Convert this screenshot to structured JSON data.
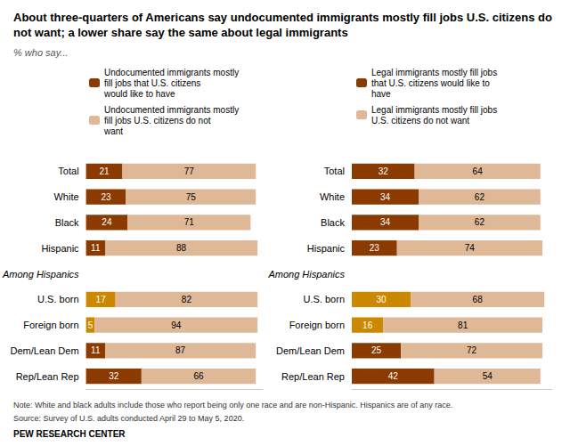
{
  "chart_data": [
    {
      "type": "bar",
      "title": "About three-quarters of Americans say undocumented immigrants mostly fill jobs U.S. citizens do not want; a lower share say the same about legal immigrants",
      "subtitle": "% who say...",
      "annotations": [
        "Note: White and black adults include those who report being only one race and are non-Hispanic. Hispanics are of any race.",
        "Source: Survey of U.S. adults conducted April 29 to May 5, 2020.",
        "PEW RESEARCH CENTER"
      ],
      "orientation": "horizontal",
      "stacked": true,
      "data_labels": true,
      "tick_labels": "y",
      "grid": false,
      "legend": "top",
      "xlim": [
        0,
        102
      ],
      "categories": [
        "Total",
        "White",
        "Black",
        "Hispanic",
        "Among Hispanics",
        "U.S. born",
        "Foreign born",
        "Dem/Lean Dem",
        "Rep/Lean Rep"
      ],
      "series": [
        {
          "name": "Undocumented immigrants mostly fill jobs that U.S. citizens would like to have",
          "colors": [
            "#8B3A00",
            "#8B3A00",
            "#8B3A00",
            "#8B3A00",
            null,
            "#CC8800",
            "#CC8800",
            "#8B3A00",
            "#8B3A00"
          ],
          "values": [
            21,
            23,
            24,
            11,
            null,
            17,
            5,
            11,
            32
          ]
        },
        {
          "name": "Undocumented immigrants mostly fill jobs U.S. citizens do not want",
          "color": "#DEB897",
          "values": [
            77,
            75,
            71,
            88,
            null,
            82,
            94,
            87,
            66
          ]
        }
      ]
    },
    {
      "type": "bar",
      "orientation": "horizontal",
      "stacked": true,
      "data_labels": true,
      "tick_labels": "y",
      "grid": false,
      "legend": "top",
      "xlim": [
        0,
        102
      ],
      "categories": [
        "Total",
        "White",
        "Black",
        "Hispanic",
        "Among Hispanics",
        "U.S. born",
        "Foreign born",
        "Dem/Lean Dem",
        "Rep/Lean Rep"
      ],
      "series": [
        {
          "name": "Legal immigrants mostly fill jobs that U.S. citizens would like to have",
          "colors": [
            "#8B3A00",
            "#8B3A00",
            "#8B3A00",
            "#8B3A00",
            null,
            "#CC8800",
            "#CC8800",
            "#8B3A00",
            "#8B3A00"
          ],
          "values": [
            32,
            34,
            34,
            23,
            null,
            30,
            16,
            25,
            42
          ]
        },
        {
          "name": "Legal immigrants mostly fill jobs U.S. citizens do not want",
          "color": "#DEB897",
          "values": [
            64,
            62,
            62,
            74,
            null,
            68,
            81,
            72,
            54
          ]
        }
      ]
    }
  ]
}
